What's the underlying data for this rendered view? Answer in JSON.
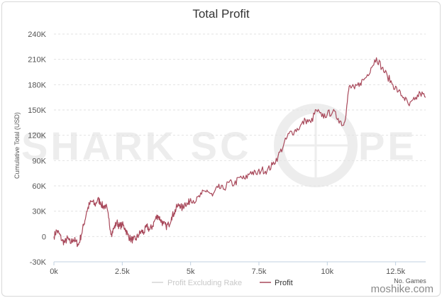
{
  "title": "Total Profit",
  "site_watermark": "moshike.com",
  "background_watermark": {
    "text_left": "SHARK SC",
    "text_right": "PE",
    "color": "#ededed"
  },
  "chart_data": {
    "type": "line",
    "title": "Total Profit",
    "xlabel": "No. Games",
    "ylabel": "Cumulative Total (USD)",
    "xlim": [
      0,
      13600
    ],
    "ylim": [
      -30000,
      240000
    ],
    "x_tick_labels": [
      "0k",
      "2.5k",
      "5k",
      "7.5k",
      "10k",
      "12.5k"
    ],
    "x_tick_values": [
      0,
      2500,
      5000,
      7500,
      10000,
      12500
    ],
    "y_tick_labels": [
      "-30K",
      "0",
      "30K",
      "60K",
      "90K",
      "120K",
      "150K",
      "180K",
      "210K",
      "240K"
    ],
    "y_tick_values": [
      -30000,
      0,
      30000,
      60000,
      90000,
      120000,
      150000,
      180000,
      210000,
      240000
    ],
    "grid": "horizontal dashed",
    "legend_position": "bottom-center",
    "series": [
      {
        "name": "Profit Excluding Rake",
        "color": "#d6d6d6",
        "points": []
      },
      {
        "name": "Profit",
        "color": "#a8485a",
        "points": [
          [
            0,
            0
          ],
          [
            100,
            7000
          ],
          [
            200,
            3000
          ],
          [
            300,
            -5000
          ],
          [
            400,
            -7000
          ],
          [
            500,
            -2000
          ],
          [
            600,
            -8000
          ],
          [
            700,
            -3000
          ],
          [
            800,
            -6000
          ],
          [
            900,
            -10000
          ],
          [
            1000,
            2000
          ],
          [
            1100,
            15000
          ],
          [
            1200,
            30000
          ],
          [
            1300,
            38000
          ],
          [
            1400,
            42000
          ],
          [
            1500,
            37000
          ],
          [
            1600,
            44000
          ],
          [
            1700,
            41000
          ],
          [
            1800,
            35000
          ],
          [
            1900,
            37000
          ],
          [
            2000,
            22000
          ],
          [
            2100,
            3000
          ],
          [
            2200,
            10000
          ],
          [
            2300,
            17000
          ],
          [
            2400,
            12000
          ],
          [
            2500,
            14000
          ],
          [
            2600,
            10000
          ],
          [
            2700,
            2000
          ],
          [
            2800,
            -3000
          ],
          [
            2900,
            -4000
          ],
          [
            3000,
            -3000
          ],
          [
            3100,
            2000
          ],
          [
            3200,
            6000
          ],
          [
            3300,
            5000
          ],
          [
            3400,
            12000
          ],
          [
            3500,
            8000
          ],
          [
            3600,
            12000
          ],
          [
            3700,
            20000
          ],
          [
            3800,
            25000
          ],
          [
            3900,
            20000
          ],
          [
            4000,
            15000
          ],
          [
            4100,
            12000
          ],
          [
            4200,
            14000
          ],
          [
            4300,
            23000
          ],
          [
            4400,
            28000
          ],
          [
            4500,
            35000
          ],
          [
            4600,
            38000
          ],
          [
            4700,
            33000
          ],
          [
            4800,
            40000
          ],
          [
            4900,
            38000
          ],
          [
            5000,
            45000
          ],
          [
            5200,
            42000
          ],
          [
            5400,
            50000
          ],
          [
            5600,
            55000
          ],
          [
            5800,
            48000
          ],
          [
            6000,
            58000
          ],
          [
            6200,
            56000
          ],
          [
            6400,
            64000
          ],
          [
            6600,
            62000
          ],
          [
            6800,
            70000
          ],
          [
            7000,
            68000
          ],
          [
            7200,
            77000
          ],
          [
            7400,
            74000
          ],
          [
            7600,
            79000
          ],
          [
            7800,
            78000
          ],
          [
            8000,
            85000
          ],
          [
            8200,
            95000
          ],
          [
            8400,
            108000
          ],
          [
            8600,
            122000
          ],
          [
            8800,
            125000
          ],
          [
            9000,
            130000
          ],
          [
            9200,
            138000
          ],
          [
            9400,
            135000
          ],
          [
            9600,
            150000
          ],
          [
            9800,
            142000
          ],
          [
            10000,
            145000
          ],
          [
            10200,
            148000
          ],
          [
            10400,
            140000
          ],
          [
            10600,
            132000
          ],
          [
            10700,
            150000
          ],
          [
            10800,
            178000
          ],
          [
            11000,
            175000
          ],
          [
            11200,
            182000
          ],
          [
            11400,
            188000
          ],
          [
            11600,
            200000
          ],
          [
            11800,
            212000
          ],
          [
            12000,
            200000
          ],
          [
            12200,
            190000
          ],
          [
            12400,
            180000
          ],
          [
            12600,
            172000
          ],
          [
            12800,
            165000
          ],
          [
            13000,
            155000
          ],
          [
            13200,
            162000
          ],
          [
            13400,
            170000
          ],
          [
            13600,
            165000
          ]
        ]
      }
    ]
  }
}
